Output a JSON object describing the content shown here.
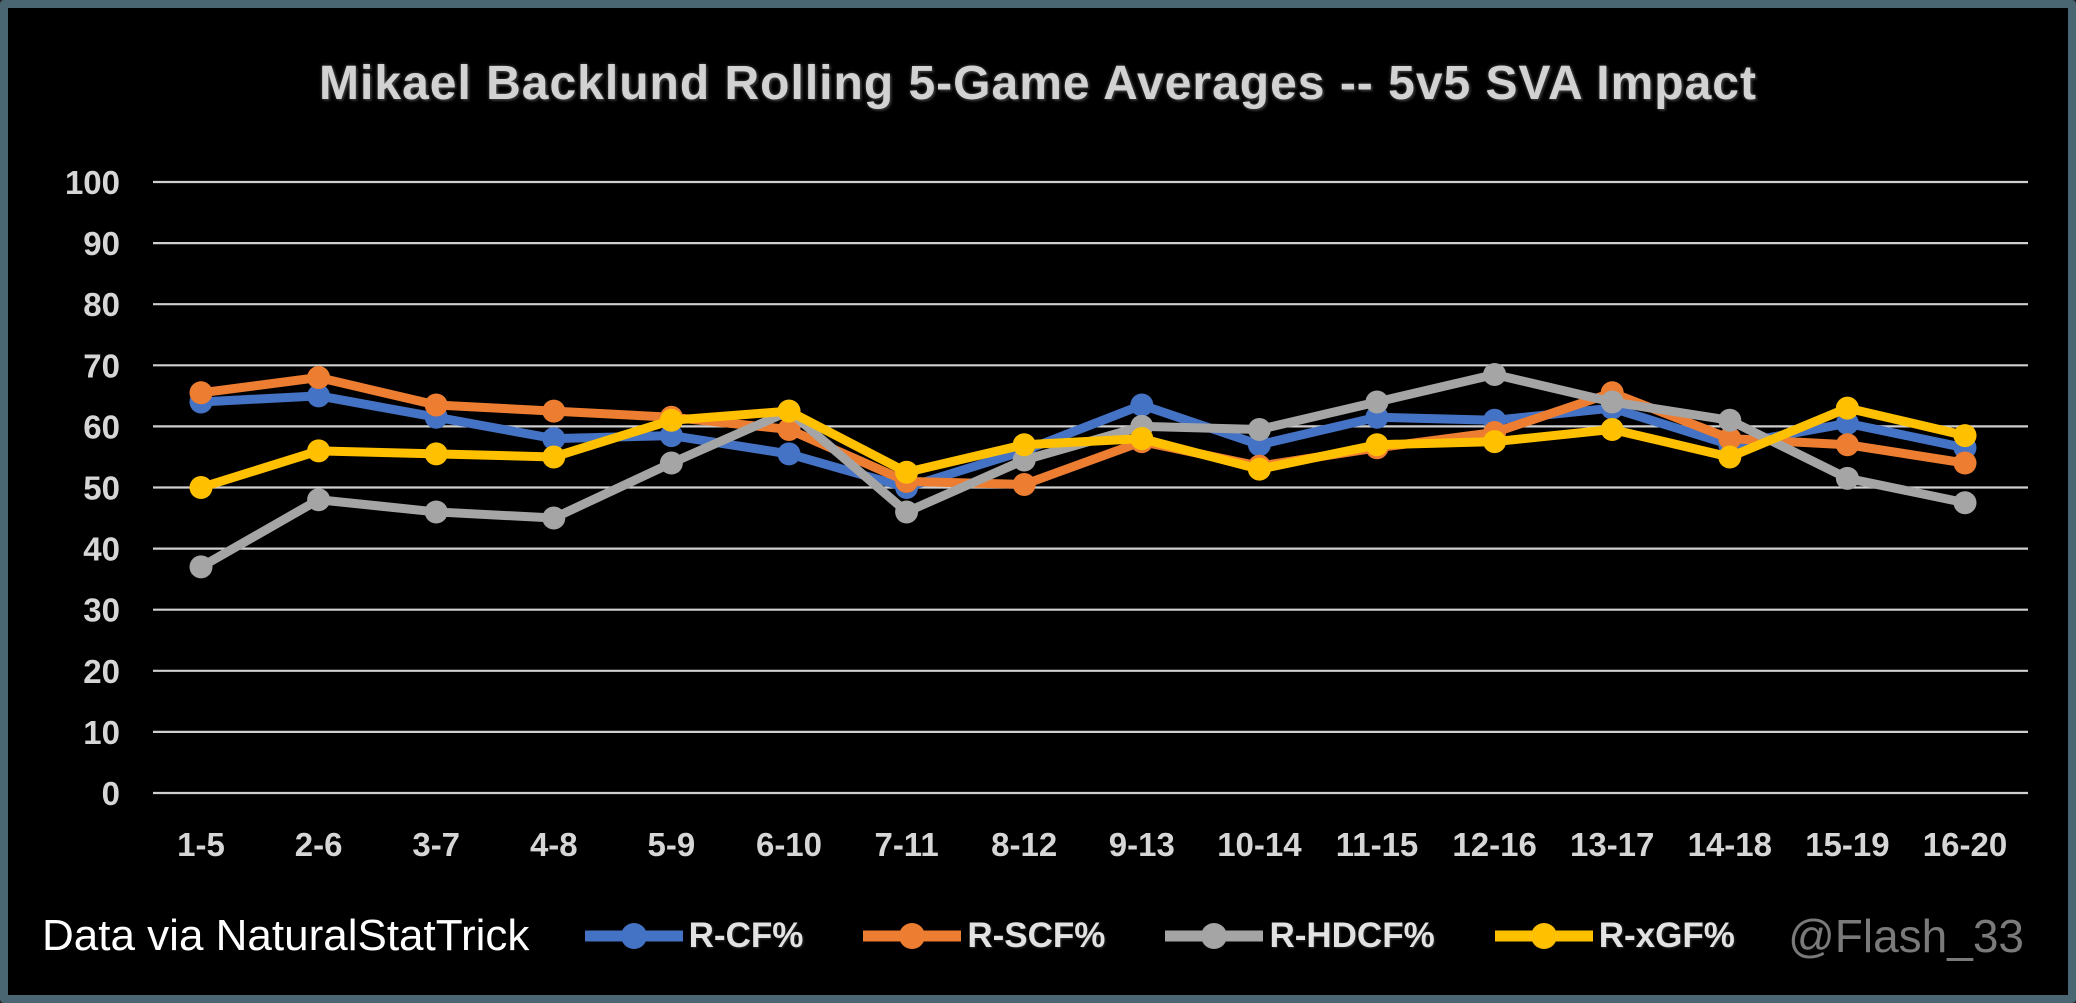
{
  "frame": {
    "background_color": "#000000",
    "border_color": "#4a6672"
  },
  "chart_data": {
    "type": "line",
    "title": "Mikael Backlund Rolling 5-Game Averages -- 5v5 SVA Impact",
    "categories": [
      "1-5",
      "2-6",
      "3-7",
      "4-8",
      "5-9",
      "6-10",
      "7-11",
      "8-12",
      "9-13",
      "10-14",
      "11-15",
      "12-16",
      "13-17",
      "14-18",
      "15-19",
      "16-20"
    ],
    "series": [
      {
        "name": "R-CF%",
        "color": "#4472C4",
        "values": [
          64,
          65,
          61.5,
          58,
          58.5,
          55.5,
          50,
          56,
          63.5,
          57,
          61.5,
          61,
          63,
          57,
          60.5,
          56.5
        ]
      },
      {
        "name": "R-SCF%",
        "color": "#ED7D31",
        "values": [
          65.5,
          68,
          63.5,
          62.5,
          61.5,
          59.5,
          51,
          50.5,
          57.5,
          53.5,
          56.5,
          59,
          65.5,
          58,
          57,
          54
        ]
      },
      {
        "name": "R-HDCF%",
        "color": "#A5A5A5",
        "values": [
          37,
          48,
          46,
          45,
          54,
          62.5,
          46,
          54.5,
          60,
          59.5,
          64,
          68.5,
          64,
          61,
          51.5,
          47.5
        ]
      },
      {
        "name": "R-xGF%",
        "color": "#FFC000",
        "values": [
          50,
          56,
          55.5,
          55,
          61,
          62.5,
          52.5,
          57,
          58,
          53,
          57,
          57.5,
          59.5,
          55,
          63,
          58.5
        ]
      }
    ],
    "ylim": [
      0,
      100
    ],
    "ytick_step": 10,
    "grid": true,
    "gridline_color": "#cfcfcf",
    "legend_position": "bottom"
  },
  "footer": {
    "credit": "Data via NaturalStatTrick",
    "watermark": "@Flash_33"
  }
}
